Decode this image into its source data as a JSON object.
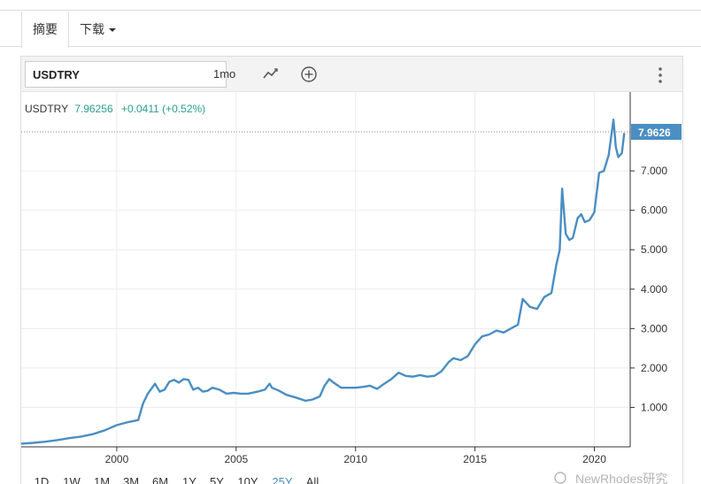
{
  "tabs": {
    "summary": "摘要",
    "download": "下载"
  },
  "toolbar": {
    "symbol": "USDTRY",
    "interval": "1mo",
    "chart_type_icon": "line-chart-icon",
    "compare_icon": "add-circle-icon",
    "more_icon": "more-vertical-icon"
  },
  "quote": {
    "symbol": "USDTRY",
    "price": "7.96256",
    "change": "+0.0411 (+0.52%)",
    "last_label": "7.9626"
  },
  "colors": {
    "line": "#4a8ec2",
    "up": "#2a9d8f",
    "badge": "#4a8ec2",
    "active_range": "#4a8ec2"
  },
  "range_buttons": [
    "1D",
    "1W",
    "1M",
    "3M",
    "6M",
    "1Y",
    "5Y",
    "10Y",
    "25Y",
    "All"
  ],
  "active_range": "25Y",
  "watermark": "NewRhodes研究",
  "chart_data": {
    "type": "line",
    "title": "",
    "xlabel": "",
    "ylabel": "",
    "x_ticks": [
      "2000",
      "2005",
      "2010",
      "2015",
      "2020"
    ],
    "y_ticks": [
      "1.000",
      "2.000",
      "3.000",
      "4.000",
      "5.000",
      "6.000",
      "7.000"
    ],
    "xlim": [
      1996.0,
      2021.5
    ],
    "ylim": [
      0,
      9.0
    ],
    "grid": true,
    "last_value": 7.9626,
    "series": [
      {
        "x": [
          1996.0,
          1996.5,
          1997.0,
          1997.5,
          1998.0,
          1998.5,
          1999.0,
          1999.5,
          2000.0,
          2000.5,
          2000.9,
          2001.1,
          2001.3,
          2001.6,
          2001.8,
          2002.0,
          2002.2,
          2002.4,
          2002.6,
          2002.8,
          2003.0,
          2003.2,
          2003.4,
          2003.6,
          2003.8,
          2004.0,
          2004.3,
          2004.6,
          2004.9,
          2005.2,
          2005.5,
          2005.9,
          2006.2,
          2006.4,
          2006.5,
          2006.8,
          2007.1,
          2007.5,
          2007.9,
          2008.2,
          2008.5,
          2008.7,
          2008.9,
          2009.1,
          2009.4,
          2009.7,
          2010.0,
          2010.3,
          2010.6,
          2010.9,
          2011.2,
          2011.5,
          2011.8,
          2012.1,
          2012.4,
          2012.7,
          2013.0,
          2013.3,
          2013.6,
          2013.9,
          2014.1,
          2014.4,
          2014.7,
          2015.0,
          2015.3,
          2015.6,
          2015.9,
          2016.2,
          2016.5,
          2016.8,
          2017.0,
          2017.3,
          2017.6,
          2017.9,
          2018.2,
          2018.4,
          2018.55,
          2018.65,
          2018.8,
          2018.95,
          2019.1,
          2019.3,
          2019.45,
          2019.6,
          2019.8,
          2020.0,
          2020.2,
          2020.4,
          2020.6,
          2020.8,
          2020.9,
          2021.0,
          2021.15,
          2021.25
        ],
        "y": [
          0.08,
          0.1,
          0.13,
          0.17,
          0.22,
          0.26,
          0.32,
          0.42,
          0.55,
          0.63,
          0.68,
          1.1,
          1.35,
          1.6,
          1.4,
          1.45,
          1.65,
          1.7,
          1.63,
          1.72,
          1.7,
          1.45,
          1.5,
          1.4,
          1.42,
          1.5,
          1.45,
          1.35,
          1.37,
          1.35,
          1.35,
          1.4,
          1.45,
          1.6,
          1.5,
          1.42,
          1.32,
          1.25,
          1.17,
          1.2,
          1.28,
          1.55,
          1.72,
          1.62,
          1.5,
          1.5,
          1.5,
          1.52,
          1.55,
          1.47,
          1.6,
          1.72,
          1.88,
          1.8,
          1.78,
          1.82,
          1.78,
          1.8,
          1.92,
          2.15,
          2.25,
          2.2,
          2.3,
          2.6,
          2.8,
          2.85,
          2.95,
          2.9,
          3.0,
          3.1,
          3.75,
          3.55,
          3.5,
          3.8,
          3.9,
          4.6,
          5.0,
          6.55,
          5.4,
          5.25,
          5.3,
          5.8,
          5.9,
          5.7,
          5.75,
          5.95,
          6.95,
          7.0,
          7.4,
          8.3,
          7.6,
          7.35,
          7.45,
          7.96
        ]
      }
    ]
  }
}
